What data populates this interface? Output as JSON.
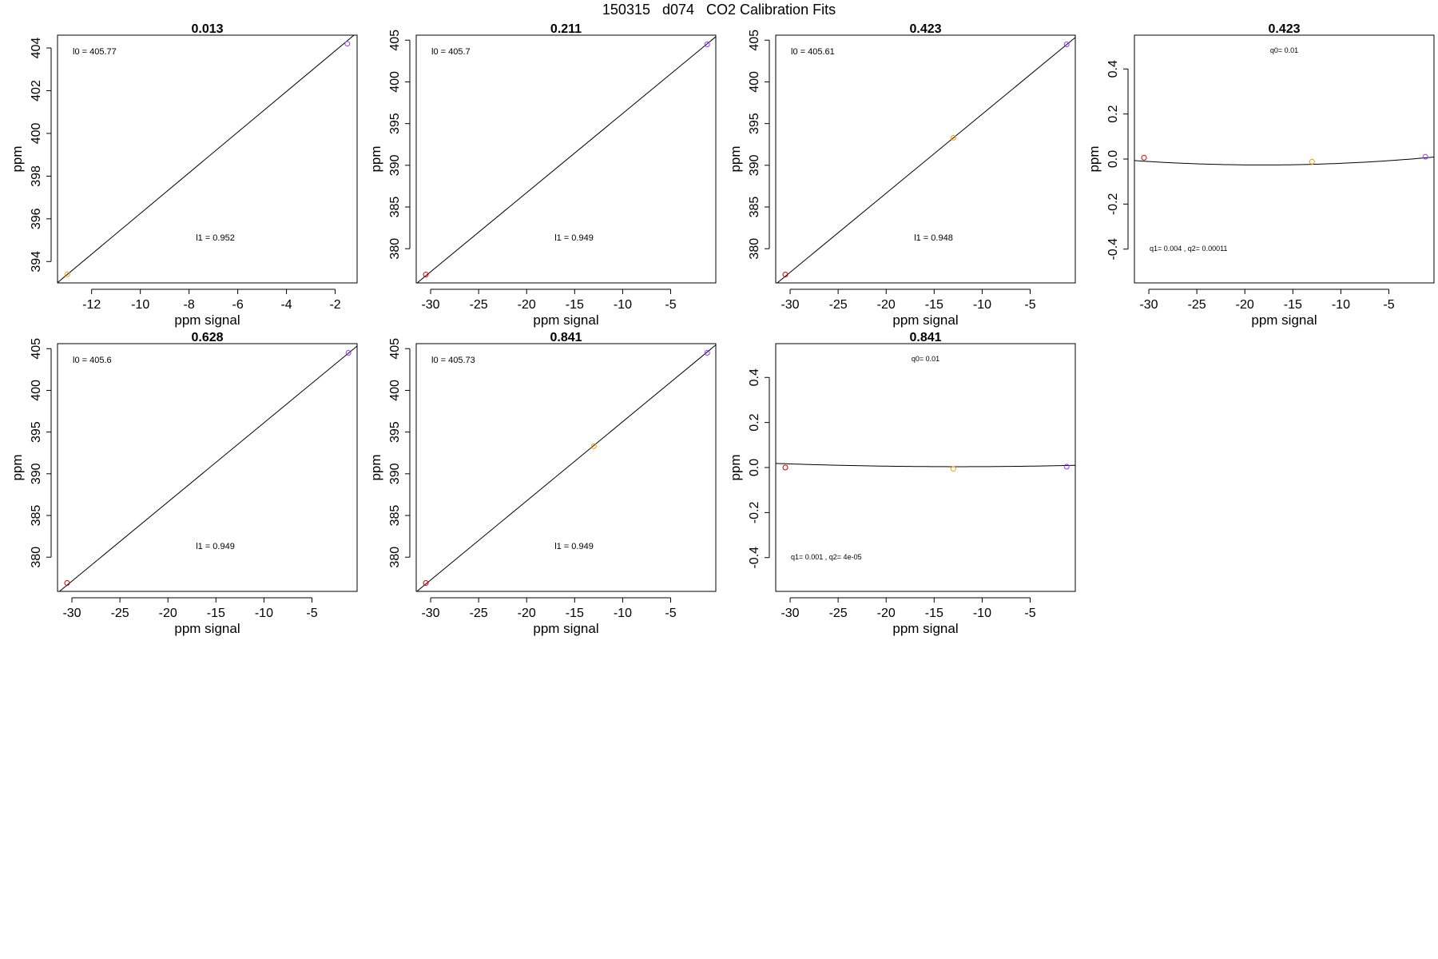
{
  "figure": {
    "title": "150315   d074   CO2 Calibration Fits"
  },
  "chart_data": [
    {
      "type": "scatter",
      "title": "0.013",
      "xlabel": "ppm signal",
      "ylabel": "ppm",
      "xlim": [
        -13.4,
        -1.1
      ],
      "ylim": [
        393.0,
        404.6
      ],
      "xticks": [
        -12,
        -10,
        -8,
        -6,
        -4,
        -2
      ],
      "xtick_labels": [
        "-12",
        "-10",
        "-8",
        "-6",
        "-4",
        "-2"
      ],
      "yticks": [
        394,
        396,
        398,
        400,
        402,
        404
      ],
      "ytick_labels": [
        "394",
        "396",
        "398",
        "400",
        "402",
        "404"
      ],
      "points": [
        {
          "x": -13.0,
          "y": 393.4,
          "color": "#ff9900"
        },
        {
          "x": -1.5,
          "y": 404.2,
          "color": "#9933ff"
        }
      ],
      "fit": {
        "kind": "linear",
        "intercept": 405.77,
        "slope": 0.952
      },
      "annotations": [
        {
          "text": "l0 =  405.77",
          "pos": "top-left"
        },
        {
          "text": "l1 =  0.952",
          "pos": "center"
        }
      ]
    },
    {
      "type": "scatter",
      "title": "0.211",
      "xlabel": "ppm signal",
      "ylabel": "ppm",
      "xlim": [
        -31.5,
        -0.3
      ],
      "ylim": [
        375.9,
        405.6
      ],
      "xticks": [
        -30,
        -25,
        -20,
        -15,
        -10,
        -5
      ],
      "xtick_labels": [
        "-30",
        "-25",
        "-20",
        "-15",
        "-10",
        "-5"
      ],
      "yticks": [
        380,
        385,
        390,
        395,
        400,
        405
      ],
      "ytick_labels": [
        "380",
        "385",
        "390",
        "395",
        "400",
        "405"
      ],
      "points": [
        {
          "x": -30.5,
          "y": 376.9,
          "color": "#cc0000"
        },
        {
          "x": -1.2,
          "y": 404.5,
          "color": "#9933ff"
        }
      ],
      "fit": {
        "kind": "linear",
        "intercept": 405.7,
        "slope": 0.949
      },
      "annotations": [
        {
          "text": "l0 =  405.7",
          "pos": "top-left"
        },
        {
          "text": "l1 =  0.949",
          "pos": "center"
        }
      ]
    },
    {
      "type": "scatter",
      "title": "0.423",
      "xlabel": "ppm signal",
      "ylabel": "ppm",
      "xlim": [
        -31.5,
        -0.3
      ],
      "ylim": [
        375.9,
        405.6
      ],
      "xticks": [
        -30,
        -25,
        -20,
        -15,
        -10,
        -5
      ],
      "xtick_labels": [
        "-30",
        "-25",
        "-20",
        "-15",
        "-10",
        "-5"
      ],
      "yticks": [
        380,
        385,
        390,
        395,
        400,
        405
      ],
      "ytick_labels": [
        "380",
        "385",
        "390",
        "395",
        "400",
        "405"
      ],
      "points": [
        {
          "x": -30.5,
          "y": 376.9,
          "color": "#cc0000"
        },
        {
          "x": -13.0,
          "y": 393.3,
          "color": "#ff9900"
        },
        {
          "x": -1.2,
          "y": 404.5,
          "color": "#9933ff"
        }
      ],
      "fit": {
        "kind": "linear",
        "intercept": 405.61,
        "slope": 0.948
      },
      "annotations": [
        {
          "text": "l0 =  405.61",
          "pos": "top-left"
        },
        {
          "text": "l1 =  0.948",
          "pos": "center"
        }
      ]
    },
    {
      "type": "scatter",
      "title": "0.423",
      "xlabel": "ppm signal",
      "ylabel": "ppm",
      "xlim": [
        -31.5,
        -0.3
      ],
      "ylim": [
        -0.55,
        0.55
      ],
      "xticks": [
        -30,
        -25,
        -20,
        -15,
        -10,
        -5
      ],
      "xtick_labels": [
        "-30",
        "-25",
        "-20",
        "-15",
        "-10",
        "-5"
      ],
      "yticks": [
        -0.4,
        -0.2,
        0.0,
        0.2,
        0.4
      ],
      "ytick_labels": [
        "-0.4",
        "-0.2",
        "0.0",
        "0.2",
        "0.4"
      ],
      "points": [
        {
          "x": -30.5,
          "y": 0.006,
          "color": "#cc0000"
        },
        {
          "x": -13.0,
          "y": -0.012,
          "color": "#ff9900"
        },
        {
          "x": -1.2,
          "y": 0.01,
          "color": "#9933ff"
        }
      ],
      "fit": {
        "kind": "quadratic",
        "q0": 0.01,
        "q1": 0.004,
        "q2": 0.00011
      },
      "annotations": [
        {
          "text": "q0= 0.01",
          "pos": "top-center"
        },
        {
          "text": "q1= 0.004 , q2= 0.00011",
          "pos": "bottom-left"
        }
      ]
    },
    {
      "type": "scatter",
      "title": "0.628",
      "xlabel": "ppm signal",
      "ylabel": "ppm",
      "xlim": [
        -31.5,
        -0.3
      ],
      "ylim": [
        375.9,
        405.6
      ],
      "xticks": [
        -30,
        -25,
        -20,
        -15,
        -10,
        -5
      ],
      "xtick_labels": [
        "-30",
        "-25",
        "-20",
        "-15",
        "-10",
        "-5"
      ],
      "yticks": [
        380,
        385,
        390,
        395,
        400,
        405
      ],
      "ytick_labels": [
        "380",
        "385",
        "390",
        "395",
        "400",
        "405"
      ],
      "points": [
        {
          "x": -30.5,
          "y": 376.9,
          "color": "#cc0000"
        },
        {
          "x": -1.2,
          "y": 404.5,
          "color": "#9933ff"
        }
      ],
      "fit": {
        "kind": "linear",
        "intercept": 405.6,
        "slope": 0.949
      },
      "annotations": [
        {
          "text": "l0 =  405.6",
          "pos": "top-left"
        },
        {
          "text": "l1 =  0.949",
          "pos": "center"
        }
      ]
    },
    {
      "type": "scatter",
      "title": "0.841",
      "xlabel": "ppm signal",
      "ylabel": "ppm",
      "xlim": [
        -31.5,
        -0.3
      ],
      "ylim": [
        375.9,
        405.6
      ],
      "xticks": [
        -30,
        -25,
        -20,
        -15,
        -10,
        -5
      ],
      "xtick_labels": [
        "-30",
        "-25",
        "-20",
        "-15",
        "-10",
        "-5"
      ],
      "yticks": [
        380,
        385,
        390,
        395,
        400,
        405
      ],
      "ytick_labels": [
        "380",
        "385",
        "390",
        "395",
        "400",
        "405"
      ],
      "points": [
        {
          "x": -30.5,
          "y": 376.9,
          "color": "#cc0000"
        },
        {
          "x": -13.0,
          "y": 393.3,
          "color": "#ff9900"
        },
        {
          "x": -1.2,
          "y": 404.5,
          "color": "#9933ff"
        }
      ],
      "fit": {
        "kind": "linear",
        "intercept": 405.73,
        "slope": 0.949
      },
      "annotations": [
        {
          "text": "l0 =  405.73",
          "pos": "top-left"
        },
        {
          "text": "l1 =  0.949",
          "pos": "center"
        }
      ]
    },
    {
      "type": "scatter",
      "title": "0.841",
      "xlabel": "ppm signal",
      "ylabel": "ppm",
      "xlim": [
        -31.5,
        -0.3
      ],
      "ylim": [
        -0.55,
        0.55
      ],
      "xticks": [
        -30,
        -25,
        -20,
        -15,
        -10,
        -5
      ],
      "xtick_labels": [
        "-30",
        "-25",
        "-20",
        "-15",
        "-10",
        "-5"
      ],
      "yticks": [
        -0.4,
        -0.2,
        0.0,
        0.2,
        0.4
      ],
      "ytick_labels": [
        "-0.4",
        "-0.2",
        "0.0",
        "0.2",
        "0.4"
      ],
      "points": [
        {
          "x": -30.5,
          "y": 0.0,
          "color": "#cc0000"
        },
        {
          "x": -13.0,
          "y": -0.006,
          "color": "#ff9900"
        },
        {
          "x": -1.2,
          "y": 0.004,
          "color": "#9933ff"
        }
      ],
      "fit": {
        "kind": "quadratic",
        "q0": 0.01,
        "q1": 0.001,
        "q2": 4e-05
      },
      "annotations": [
        {
          "text": "q0= 0.01",
          "pos": "top-center"
        },
        {
          "text": "q1= 0.001 , q2= 4e-05",
          "pos": "bottom-left"
        }
      ]
    }
  ]
}
